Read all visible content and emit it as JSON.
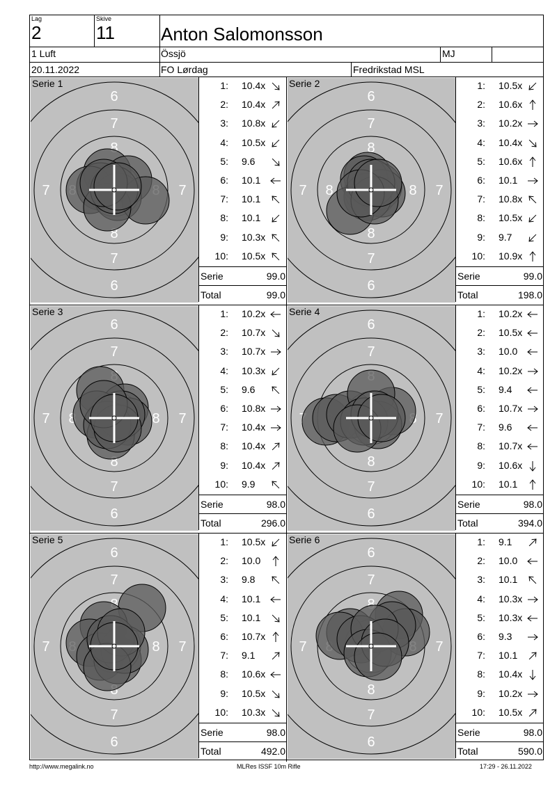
{
  "header": {
    "lag_label": "Lag",
    "lag_value": "2",
    "skive_label": "Skive",
    "skive_value": "11",
    "shooter_name": "Anton Salomonsson",
    "class": "1 Luft",
    "club": "Össjö",
    "code": "MJ",
    "date": "20.11.2022",
    "event": "FO Lørdag",
    "range": "Fredrikstad MSL"
  },
  "series": [
    {
      "title": "Serie 1",
      "shots": [
        {
          "n": "1:",
          "v": "10.4x",
          "arrow": "se"
        },
        {
          "n": "2:",
          "v": "10.4x",
          "arrow": "ne"
        },
        {
          "n": "3:",
          "v": "10.8x",
          "arrow": "sw"
        },
        {
          "n": "4:",
          "v": "10.5x",
          "arrow": "sw"
        },
        {
          "n": "5:",
          "v": "9.6",
          "arrow": "se"
        },
        {
          "n": "6:",
          "v": "10.1",
          "arrow": "w"
        },
        {
          "n": "7:",
          "v": "10.1",
          "arrow": "nw"
        },
        {
          "n": "8:",
          "v": "10.1",
          "arrow": "sw"
        },
        {
          "n": "9:",
          "v": "10.3x",
          "arrow": "nw"
        },
        {
          "n": "10:",
          "v": "10.5x",
          "arrow": "nw"
        }
      ],
      "serie_label": "Serie",
      "serie_value": "99.0",
      "total_label": "Total",
      "total_value": "99.0"
    },
    {
      "title": "Serie 2",
      "shots": [
        {
          "n": "1:",
          "v": "10.5x",
          "arrow": "sw"
        },
        {
          "n": "2:",
          "v": "10.6x",
          "arrow": "n"
        },
        {
          "n": "3:",
          "v": "10.2x",
          "arrow": "e"
        },
        {
          "n": "4:",
          "v": "10.4x",
          "arrow": "se"
        },
        {
          "n": "5:",
          "v": "10.6x",
          "arrow": "n"
        },
        {
          "n": "6:",
          "v": "10.1",
          "arrow": "e"
        },
        {
          "n": "7:",
          "v": "10.8x",
          "arrow": "nw"
        },
        {
          "n": "8:",
          "v": "10.5x",
          "arrow": "sw"
        },
        {
          "n": "9:",
          "v": "9.7",
          "arrow": "sw"
        },
        {
          "n": "10:",
          "v": "10.9x",
          "arrow": "n"
        }
      ],
      "serie_label": "Serie",
      "serie_value": "99.0",
      "total_label": "Total",
      "total_value": "198.0"
    },
    {
      "title": "Serie 3",
      "shots": [
        {
          "n": "1:",
          "v": "10.2x",
          "arrow": "w"
        },
        {
          "n": "2:",
          "v": "10.7x",
          "arrow": "se"
        },
        {
          "n": "3:",
          "v": "10.7x",
          "arrow": "e"
        },
        {
          "n": "4:",
          "v": "10.3x",
          "arrow": "sw"
        },
        {
          "n": "5:",
          "v": "9.6",
          "arrow": "nw"
        },
        {
          "n": "6:",
          "v": "10.8x",
          "arrow": "e"
        },
        {
          "n": "7:",
          "v": "10.4x",
          "arrow": "e"
        },
        {
          "n": "8:",
          "v": "10.4x",
          "arrow": "ne"
        },
        {
          "n": "9:",
          "v": "10.4x",
          "arrow": "ne"
        },
        {
          "n": "10:",
          "v": "9.9",
          "arrow": "nw"
        }
      ],
      "serie_label": "Serie",
      "serie_value": "98.0",
      "total_label": "Total",
      "total_value": "296.0"
    },
    {
      "title": "Serie 4",
      "shots": [
        {
          "n": "1:",
          "v": "10.2x",
          "arrow": "w"
        },
        {
          "n": "2:",
          "v": "10.5x",
          "arrow": "w"
        },
        {
          "n": "3:",
          "v": "10.0",
          "arrow": "w"
        },
        {
          "n": "4:",
          "v": "10.2x",
          "arrow": "e"
        },
        {
          "n": "5:",
          "v": "9.4",
          "arrow": "w"
        },
        {
          "n": "6:",
          "v": "10.7x",
          "arrow": "e"
        },
        {
          "n": "7:",
          "v": "9.6",
          "arrow": "w"
        },
        {
          "n": "8:",
          "v": "10.7x",
          "arrow": "w"
        },
        {
          "n": "9:",
          "v": "10.6x",
          "arrow": "s"
        },
        {
          "n": "10:",
          "v": "10.1",
          "arrow": "n"
        }
      ],
      "serie_label": "Serie",
      "serie_value": "98.0",
      "total_label": "Total",
      "total_value": "394.0"
    },
    {
      "title": "Serie 5",
      "shots": [
        {
          "n": "1:",
          "v": "10.5x",
          "arrow": "sw"
        },
        {
          "n": "2:",
          "v": "10.0",
          "arrow": "n"
        },
        {
          "n": "3:",
          "v": "9.8",
          "arrow": "nw"
        },
        {
          "n": "4:",
          "v": "10.1",
          "arrow": "w"
        },
        {
          "n": "5:",
          "v": "10.1",
          "arrow": "se"
        },
        {
          "n": "6:",
          "v": "10.7x",
          "arrow": "n"
        },
        {
          "n": "7:",
          "v": "9.1",
          "arrow": "ne"
        },
        {
          "n": "8:",
          "v": "10.6x",
          "arrow": "w"
        },
        {
          "n": "9:",
          "v": "10.5x",
          "arrow": "se"
        },
        {
          "n": "10:",
          "v": "10.3x",
          "arrow": "se"
        }
      ],
      "serie_label": "Serie",
      "serie_value": "98.0",
      "total_label": "Total",
      "total_value": "492.0"
    },
    {
      "title": "Serie 6",
      "shots": [
        {
          "n": "1:",
          "v": "9.1",
          "arrow": "ne"
        },
        {
          "n": "2:",
          "v": "10.0",
          "arrow": "w"
        },
        {
          "n": "3:",
          "v": "10.1",
          "arrow": "nw"
        },
        {
          "n": "4:",
          "v": "10.3x",
          "arrow": "e"
        },
        {
          "n": "5:",
          "v": "10.3x",
          "arrow": "w"
        },
        {
          "n": "6:",
          "v": "9.3",
          "arrow": "e"
        },
        {
          "n": "7:",
          "v": "10.1",
          "arrow": "ne"
        },
        {
          "n": "8:",
          "v": "10.4x",
          "arrow": "s"
        },
        {
          "n": "9:",
          "v": "10.2x",
          "arrow": "e"
        },
        {
          "n": "10:",
          "v": "10.5x",
          "arrow": "ne"
        }
      ],
      "serie_label": "Serie",
      "serie_value": "98.0",
      "total_label": "Total",
      "total_value": "590.0"
    }
  ],
  "ring_labels": {
    "six": "6",
    "seven": "7",
    "eight": "8"
  },
  "footer": {
    "left": "http://www.megalink.no",
    "center": "MLRes ISSF 10m Rifle",
    "right": "17:29 - 26.11.2022"
  }
}
